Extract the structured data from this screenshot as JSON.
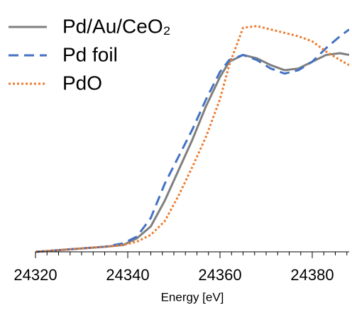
{
  "chart_data": {
    "type": "line",
    "x_label": "Energy [eV]",
    "x": [
      24320,
      24325,
      24330,
      24335,
      24339,
      24342,
      24345,
      24348,
      24351,
      24354,
      24357,
      24360,
      24362,
      24365,
      24368,
      24371,
      24374,
      24377,
      24380,
      24383,
      24386,
      24388
    ],
    "series": [
      {
        "name": "Pd/Au/CeO₂",
        "color": "#7f7f7f",
        "dash": "solid",
        "values": [
          0,
          0.01,
          0.02,
          0.03,
          0.04,
          0.08,
          0.15,
          0.3,
          0.48,
          0.66,
          0.86,
          1.03,
          1.12,
          1.16,
          1.14,
          1.1,
          1.07,
          1.08,
          1.12,
          1.16,
          1.17,
          1.16
        ]
      },
      {
        "name": "Pd foil",
        "color": "#4472c4",
        "dash": "dashed",
        "values": [
          0,
          0.01,
          0.02,
          0.03,
          0.05,
          0.09,
          0.2,
          0.4,
          0.56,
          0.72,
          0.9,
          1.06,
          1.13,
          1.16,
          1.13,
          1.08,
          1.05,
          1.07,
          1.12,
          1.2,
          1.27,
          1.31
        ]
      },
      {
        "name": "PdO",
        "color": "#ed7d31",
        "dash": "dotted",
        "values": [
          0,
          0.01,
          0.02,
          0.03,
          0.04,
          0.06,
          0.1,
          0.18,
          0.33,
          0.5,
          0.68,
          0.9,
          1.1,
          1.32,
          1.33,
          1.31,
          1.29,
          1.27,
          1.24,
          1.18,
          1.13,
          1.1
        ]
      }
    ],
    "xlim": [
      24320,
      24388
    ],
    "xticks": [
      24320,
      24340,
      24360,
      24380
    ],
    "xminorticks": [
      24322.5,
      24325,
      24327.5,
      24330,
      24332.5,
      24335,
      24337.5,
      24342.5,
      24345,
      24347.5,
      24350,
      24352.5,
      24355,
      24357.5,
      24362.5,
      24365,
      24367.5,
      24370,
      24372.5,
      24375,
      24377.5,
      24382.5,
      24385,
      24387.5
    ],
    "ylim": [
      0,
      1.4
    ],
    "legend": "top-left"
  }
}
